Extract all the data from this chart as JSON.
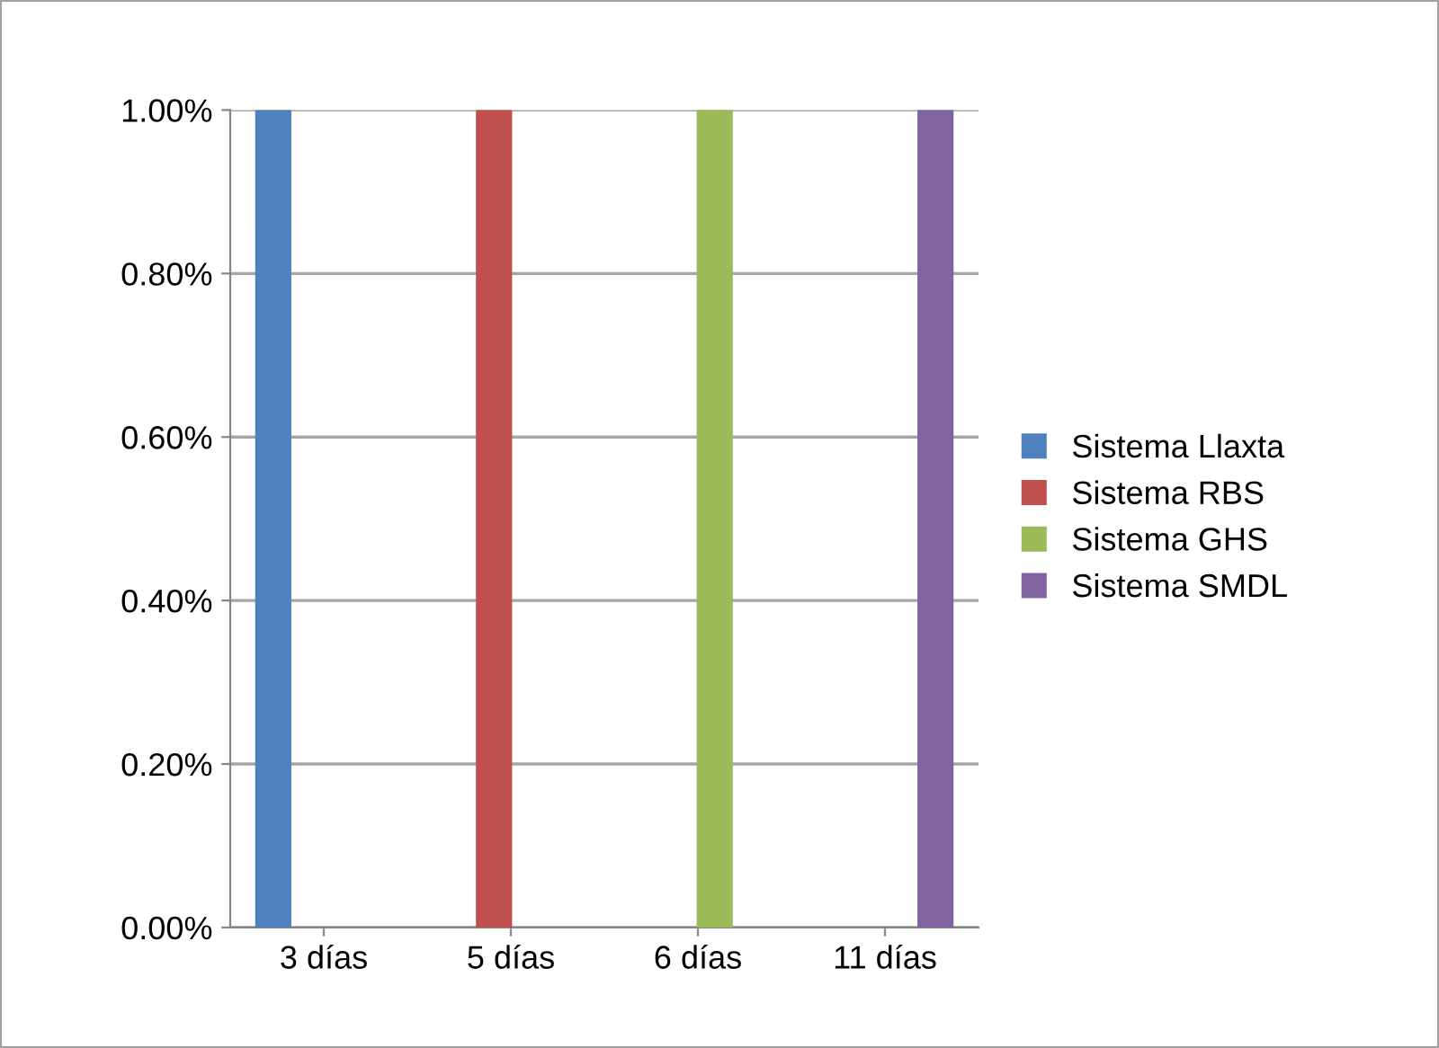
{
  "chart_data": {
    "type": "bar",
    "categories": [
      "3 días",
      "5 días",
      "6 días",
      "11 días"
    ],
    "series": [
      {
        "name": "Sistema Llaxta",
        "color": "#4f81bd",
        "values": [
          1.0,
          null,
          null,
          null
        ]
      },
      {
        "name": "Sistema RBS",
        "color": "#c0504d",
        "values": [
          null,
          1.0,
          null,
          null
        ]
      },
      {
        "name": "Sistema GHS",
        "color": "#9bbb59",
        "values": [
          null,
          null,
          1.0,
          null
        ]
      },
      {
        "name": "Sistema SMDL",
        "color": "#8064a2",
        "values": [
          null,
          null,
          null,
          1.0
        ]
      }
    ],
    "ylim": [
      0,
      1.0
    ],
    "yticks": [
      {
        "value": 0,
        "label": "0.00%"
      },
      {
        "value": 0.2,
        "label": "0.20%"
      },
      {
        "value": 0.4,
        "label": "0.40%"
      },
      {
        "value": 0.6,
        "label": "0.60%"
      },
      {
        "value": 0.8,
        "label": "0.80%"
      },
      {
        "value": 1.0,
        "label": "1.00%"
      }
    ],
    "grid": "y",
    "legend": "right"
  }
}
